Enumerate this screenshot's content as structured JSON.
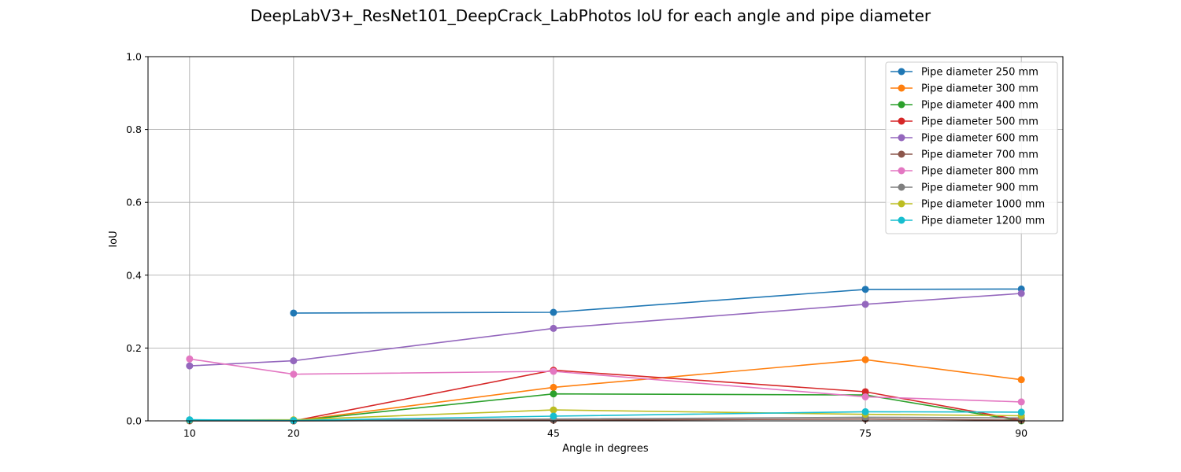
{
  "chart_data": {
    "type": "line",
    "title": "DeepLabV3+_ResNet101_DeepCrack_LabPhotos IoU for each angle and pipe diameter",
    "xlabel": "Angle in degrees",
    "ylabel": "IoU",
    "x_ticks": [
      10,
      20,
      45,
      75,
      90
    ],
    "y_ticks": [
      "0.0",
      "0.2",
      "0.4",
      "0.6",
      "0.8",
      "1.0"
    ],
    "xlim": [
      6,
      94
    ],
    "ylim": [
      0,
      1
    ],
    "grid": true,
    "legend_position": "top-right",
    "series": [
      {
        "name": "Pipe diameter 250 mm",
        "color": "#1f77b4",
        "points": [
          [
            20,
            0.296
          ],
          [
            45,
            0.298
          ],
          [
            75,
            0.361
          ],
          [
            90,
            0.362
          ]
        ]
      },
      {
        "name": "Pipe diameter 300 mm",
        "color": "#ff7f0e",
        "points": [
          [
            20,
            0.0
          ],
          [
            45,
            0.092
          ],
          [
            75,
            0.168
          ],
          [
            90,
            0.113
          ]
        ]
      },
      {
        "name": "Pipe diameter 400 mm",
        "color": "#2ca02c",
        "points": [
          [
            20,
            0.0
          ],
          [
            45,
            0.074
          ],
          [
            75,
            0.071
          ],
          [
            90,
            0.0
          ]
        ]
      },
      {
        "name": "Pipe diameter 500 mm",
        "color": "#d62728",
        "points": [
          [
            20,
            0.0
          ],
          [
            45,
            0.139
          ],
          [
            75,
            0.08
          ],
          [
            90,
            0.002
          ]
        ]
      },
      {
        "name": "Pipe diameter 600 mm",
        "color": "#9467bd",
        "points": [
          [
            10,
            0.151
          ],
          [
            20,
            0.165
          ],
          [
            45,
            0.254
          ],
          [
            75,
            0.32
          ],
          [
            90,
            0.35
          ]
        ]
      },
      {
        "name": "Pipe diameter 700 mm",
        "color": "#8c564b",
        "points": [
          [
            10,
            0.0
          ],
          [
            20,
            0.0
          ],
          [
            45,
            0.002
          ],
          [
            75,
            0.005
          ],
          [
            90,
            0.002
          ]
        ]
      },
      {
        "name": "Pipe diameter 800 mm",
        "color": "#e377c2",
        "points": [
          [
            10,
            0.17
          ],
          [
            20,
            0.128
          ],
          [
            45,
            0.136
          ],
          [
            75,
            0.066
          ],
          [
            90,
            0.052
          ]
        ]
      },
      {
        "name": "Pipe diameter 900 mm",
        "color": "#7f7f7f",
        "points": [
          [
            10,
            0.002
          ],
          [
            20,
            0.002
          ],
          [
            45,
            0.005
          ],
          [
            75,
            0.01
          ],
          [
            90,
            0.008
          ]
        ]
      },
      {
        "name": "Pipe diameter 1000 mm",
        "color": "#bcbd22",
        "points": [
          [
            10,
            0.002
          ],
          [
            20,
            0.003
          ],
          [
            45,
            0.03
          ],
          [
            75,
            0.018
          ],
          [
            90,
            0.014
          ]
        ]
      },
      {
        "name": "Pipe diameter 1200 mm",
        "color": "#17becf",
        "points": [
          [
            10,
            0.003
          ],
          [
            20,
            0.001
          ],
          [
            45,
            0.013
          ],
          [
            75,
            0.025
          ],
          [
            90,
            0.024
          ]
        ]
      }
    ]
  }
}
